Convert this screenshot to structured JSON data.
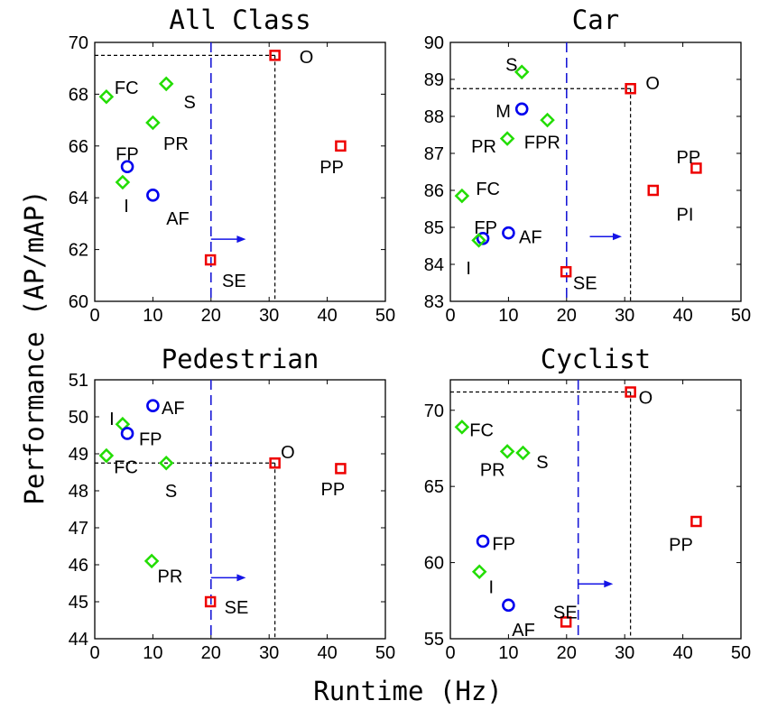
{
  "chart_data": {
    "type": "scatter",
    "xlabel": "Runtime (Hz)",
    "ylabel": "Performance (AP/mAP)",
    "xlim": [
      0,
      50
    ],
    "xticks": [
      0,
      10,
      20,
      30,
      40,
      50
    ],
    "colors": {
      "diamond": "#22dd00",
      "circle": "#0000ee",
      "square": "#ee0000",
      "threshold": "#1a1ad6",
      "arrow": "#1414e6"
    },
    "panels": [
      {
        "title": "All Class",
        "ylim": [
          60,
          70
        ],
        "yticks": [
          60,
          62,
          64,
          66,
          68,
          70
        ],
        "threshold_x": 20,
        "reference": {
          "x": 31,
          "y": 69.5
        },
        "arrow": {
          "from_x": 20,
          "to_x": 26,
          "y": 62.4
        },
        "points": [
          {
            "label": "O",
            "x": 31,
            "y": 69.5,
            "marker": "square",
            "lx": 4.2,
            "ly": -0.05
          },
          {
            "label": "FC",
            "x": 2,
            "y": 67.9,
            "marker": "diamond",
            "lx": 1.4,
            "ly": 0.35
          },
          {
            "label": "S",
            "x": 12.3,
            "y": 68.4,
            "marker": "diamond",
            "lx": 3.0,
            "ly": -0.7
          },
          {
            "label": "PR",
            "x": 10,
            "y": 66.9,
            "marker": "diamond",
            "lx": 1.8,
            "ly": -0.8
          },
          {
            "label": "FP",
            "x": 5.6,
            "y": 65.2,
            "marker": "circle",
            "lx": -2.0,
            "ly": 0.5
          },
          {
            "label": "I",
            "x": 4.8,
            "y": 64.6,
            "marker": "diamond",
            "lx": 0.2,
            "ly": -0.9
          },
          {
            "label": "AF",
            "x": 10,
            "y": 64.1,
            "marker": "circle",
            "lx": 2.3,
            "ly": -0.9
          },
          {
            "label": "PP",
            "x": 42.3,
            "y": 66,
            "marker": "square",
            "lx": -3.6,
            "ly": -0.8
          },
          {
            "label": "SE",
            "x": 19.9,
            "y": 61.6,
            "marker": "square",
            "lx": 2.0,
            "ly": -0.8
          }
        ]
      },
      {
        "title": "Car",
        "ylim": [
          83,
          90
        ],
        "yticks": [
          83,
          84,
          85,
          86,
          87,
          88,
          89,
          90
        ],
        "threshold_x": 20,
        "reference": {
          "x": 31,
          "y": 88.75
        },
        "arrow": {
          "from_x": 24,
          "to_x": 29.5,
          "y": 84.75
        },
        "points": [
          {
            "label": "O",
            "x": 31,
            "y": 88.75,
            "marker": "square",
            "lx": 2.6,
            "ly": 0.15
          },
          {
            "label": "S",
            "x": 12.3,
            "y": 89.2,
            "marker": "diamond",
            "lx": -2.8,
            "ly": 0.2
          },
          {
            "label": "M",
            "x": 12.3,
            "y": 88.2,
            "marker": "circle",
            "lx": -4.5,
            "ly": -0.05
          },
          {
            "label": "FPR",
            "x": 16.7,
            "y": 87.9,
            "marker": "diamond",
            "lx": -4.0,
            "ly": -0.6
          },
          {
            "label": "PR",
            "x": 9.8,
            "y": 87.4,
            "marker": "diamond",
            "lx": -6.2,
            "ly": -0.2
          },
          {
            "label": "PP",
            "x": 42.3,
            "y": 86.6,
            "marker": "square",
            "lx": -3.4,
            "ly": 0.3
          },
          {
            "label": "PI",
            "x": 34.9,
            "y": 86.0,
            "marker": "square",
            "lx": 4.0,
            "ly": -0.65
          },
          {
            "label": "FC",
            "x": 2,
            "y": 85.85,
            "marker": "diamond",
            "lx": 2.4,
            "ly": 0.2
          },
          {
            "label": "FP",
            "x": 5.6,
            "y": 84.7,
            "marker": "circle",
            "lx": -1.5,
            "ly": 0.3
          },
          {
            "label": "AF",
            "x": 10,
            "y": 84.85,
            "marker": "circle",
            "lx": 1.8,
            "ly": -0.1
          },
          {
            "label": "I",
            "x": 4.9,
            "y": 84.65,
            "marker": "diamond",
            "lx": -2.2,
            "ly": -0.75
          },
          {
            "label": "SE",
            "x": 19.9,
            "y": 83.8,
            "marker": "square",
            "lx": 1.2,
            "ly": -0.3
          }
        ]
      },
      {
        "title": "Pedestrian",
        "ylim": [
          44,
          51
        ],
        "yticks": [
          44,
          45,
          46,
          47,
          48,
          49,
          50,
          51
        ],
        "threshold_x": 20,
        "reference": {
          "x": 31,
          "y": 48.75
        },
        "arrow": {
          "from_x": 20,
          "to_x": 26,
          "y": 45.65
        },
        "points": [
          {
            "label": "AF",
            "x": 10,
            "y": 50.3,
            "marker": "circle",
            "lx": 1.5,
            "ly": -0.05
          },
          {
            "label": "I",
            "x": 4.8,
            "y": 49.8,
            "marker": "diamond",
            "lx": -2.3,
            "ly": 0.15
          },
          {
            "label": "FP",
            "x": 5.6,
            "y": 49.55,
            "marker": "circle",
            "lx": 2.0,
            "ly": -0.15
          },
          {
            "label": "FC",
            "x": 2,
            "y": 48.95,
            "marker": "diamond",
            "lx": 1.3,
            "ly": -0.3
          },
          {
            "label": "S",
            "x": 12.3,
            "y": 48.75,
            "marker": "diamond",
            "lx": -0.2,
            "ly": -0.75
          },
          {
            "label": "O",
            "x": 31,
            "y": 48.75,
            "marker": "square",
            "lx": 1.0,
            "ly": 0.3
          },
          {
            "label": "PP",
            "x": 42.3,
            "y": 48.6,
            "marker": "square",
            "lx": -3.4,
            "ly": -0.55
          },
          {
            "label": "PR",
            "x": 9.8,
            "y": 46.1,
            "marker": "diamond",
            "lx": 1.0,
            "ly": -0.4
          },
          {
            "label": "SE",
            "x": 19.9,
            "y": 45.0,
            "marker": "square",
            "lx": 2.4,
            "ly": -0.15
          }
        ]
      },
      {
        "title": "Cyclist",
        "ylim": [
          55,
          72
        ],
        "yticks": [
          55,
          60,
          65,
          70
        ],
        "threshold_x": 22,
        "reference": {
          "x": 31,
          "y": 71.2
        },
        "arrow": {
          "from_x": 22,
          "to_x": 28,
          "y": 58.6
        },
        "points": [
          {
            "label": "O",
            "x": 31,
            "y": 71.2,
            "marker": "square",
            "lx": 1.4,
            "ly": -0.35
          },
          {
            "label": "FC",
            "x": 2,
            "y": 68.9,
            "marker": "diamond",
            "lx": 1.3,
            "ly": -0.2
          },
          {
            "label": "PR",
            "x": 9.8,
            "y": 67.3,
            "marker": "diamond",
            "lx": -4.7,
            "ly": -1.2
          },
          {
            "label": "S",
            "x": 12.5,
            "y": 67.2,
            "marker": "diamond",
            "lx": 2.3,
            "ly": -0.6
          },
          {
            "label": "PP",
            "x": 42.3,
            "y": 62.7,
            "marker": "square",
            "lx": -4.7,
            "ly": -1.5
          },
          {
            "label": "FP",
            "x": 5.6,
            "y": 61.4,
            "marker": "circle",
            "lx": 1.6,
            "ly": -0.15
          },
          {
            "label": "I",
            "x": 5,
            "y": 59.4,
            "marker": "diamond",
            "lx": 1.6,
            "ly": -1.0
          },
          {
            "label": "AF",
            "x": 10,
            "y": 57.2,
            "marker": "circle",
            "lx": 0.6,
            "ly": -1.6
          },
          {
            "label": "SE",
            "x": 19.9,
            "y": 56.1,
            "marker": "square",
            "lx": -2.2,
            "ly": 0.65
          }
        ]
      }
    ]
  }
}
